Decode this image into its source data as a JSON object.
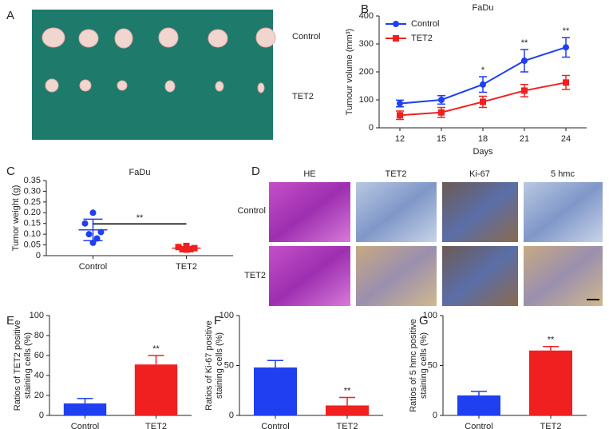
{
  "panel_labels": [
    "A",
    "B",
    "C",
    "D",
    "E",
    "F",
    "G"
  ],
  "photo_a": {
    "row_labels": [
      "Control",
      "TET2"
    ]
  },
  "photo_d": {
    "column_labels": [
      "HE",
      "TET2",
      "Ki-67",
      "5 hmc"
    ],
    "row_labels": [
      "Control",
      "TET2"
    ]
  },
  "chart_data": [
    {
      "type": "line",
      "title": "FaDu",
      "x_label": "Days",
      "y_label": "Tumour volume (mm³)",
      "categories": [
        "12",
        "15",
        "18",
        "21",
        "24"
      ],
      "ylim": [
        0,
        400
      ],
      "yticks": [
        0,
        100,
        200,
        300,
        400
      ],
      "legend": "upper left",
      "series": [
        {
          "name": "Control",
          "color": "#1f3ff0",
          "marker": "circle",
          "values": [
            87,
            100,
            155,
            240,
            288
          ],
          "errors": [
            12,
            15,
            28,
            40,
            35
          ]
        },
        {
          "name": "TET2",
          "color": "#f02020",
          "marker": "square",
          "values": [
            45,
            55,
            93,
            133,
            162
          ],
          "errors": [
            15,
            18,
            20,
            22,
            25
          ]
        }
      ],
      "annotations": [
        null,
        null,
        "*",
        "**",
        "**"
      ]
    },
    {
      "type": "scatter",
      "title": "FaDu",
      "y_label": "Tumor weight (g)",
      "categories": [
        "Control",
        "TET2"
      ],
      "ylim": [
        0,
        0.35
      ],
      "yticks": [
        0,
        0.05,
        {
          "value": 0.1,
          "label": "0.10"
        },
        0.15,
        {
          "value": 0.2,
          "label": "0.20"
        },
        0.25,
        {
          "value": 0.3,
          "label": "0.30"
        },
        0.35
      ],
      "groups": [
        {
          "color": "#1f3ff0",
          "marker": "circle",
          "values": [
            0.2,
            0.15,
            0.11,
            0.1,
            0.08,
            0.06
          ],
          "mean": 0.12,
          "sd": 0.05
        },
        {
          "color": "#f02020",
          "marker": "square",
          "values": [
            0.045,
            0.04,
            0.035,
            0.03,
            0.03,
            0.028
          ],
          "mean": 0.035,
          "sd": 0.005
        }
      ],
      "annotation": "**"
    },
    {
      "type": "bar",
      "y_label": [
        "Ratios of TET2 positive",
        "staining cells (%)"
      ],
      "categories": [
        "Control",
        "TET2"
      ],
      "values": [
        12,
        51
      ],
      "errors": [
        5,
        9
      ],
      "colors": [
        "#1f3ff0",
        "#f02020"
      ],
      "ylim": [
        0,
        100
      ],
      "yticks": [
        0,
        20,
        40,
        60,
        80,
        100
      ],
      "annotations": [
        null,
        "**"
      ]
    },
    {
      "type": "bar",
      "y_label": [
        "Ratios of Ki-67 positive",
        "staining cells (%)"
      ],
      "categories": [
        "Control",
        "TET2"
      ],
      "values": [
        48,
        10
      ],
      "errors": [
        7,
        8
      ],
      "colors": [
        "#1f3ff0",
        "#f02020"
      ],
      "ylim": [
        0,
        100
      ],
      "yticks": [
        0,
        50,
        100
      ],
      "annotations": [
        null,
        "**"
      ]
    },
    {
      "type": "bar",
      "y_label": [
        "Ratios of 5 hmc positive",
        "staining cells (%)"
      ],
      "categories": [
        "Control",
        "TET2"
      ],
      "values": [
        20,
        65
      ],
      "errors": [
        4,
        4
      ],
      "colors": [
        "#1f3ff0",
        "#f02020"
      ],
      "ylim": [
        0,
        100
      ],
      "yticks": [
        0,
        50,
        100
      ],
      "annotations": [
        null,
        "**"
      ]
    }
  ]
}
